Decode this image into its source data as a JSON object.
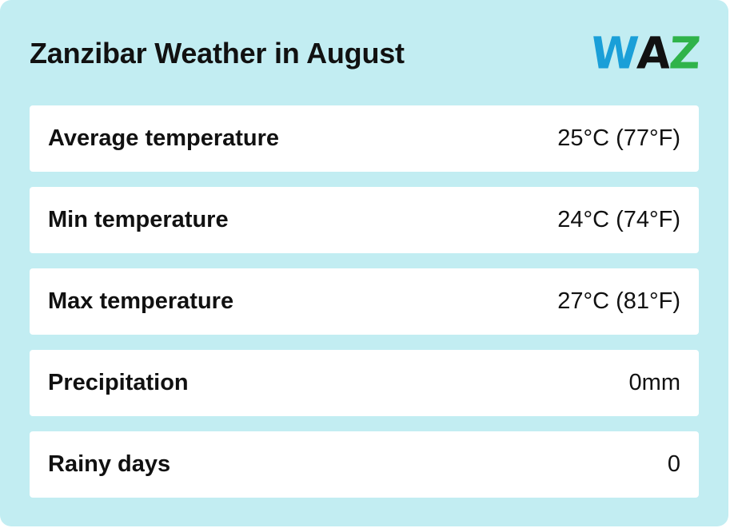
{
  "title": "Zanzibar Weather in August",
  "logo": {
    "letters": [
      "W",
      "A",
      "Z"
    ],
    "colors": [
      "#1a9fd8",
      "#111111",
      "#2fb34a"
    ]
  },
  "rows": [
    {
      "label": "Average temperature",
      "value": "25°C (77°F)"
    },
    {
      "label": "Min temperature",
      "value": "24°C (74°F)"
    },
    {
      "label": "Max temperature",
      "value": "27°C (81°F)"
    },
    {
      "label": "Precipitation",
      "value": "0mm"
    },
    {
      "label": "Rainy days",
      "value": "0"
    }
  ],
  "colors": {
    "background": "#c2edf2",
    "row_background": "#ffffff",
    "text": "#111111"
  }
}
